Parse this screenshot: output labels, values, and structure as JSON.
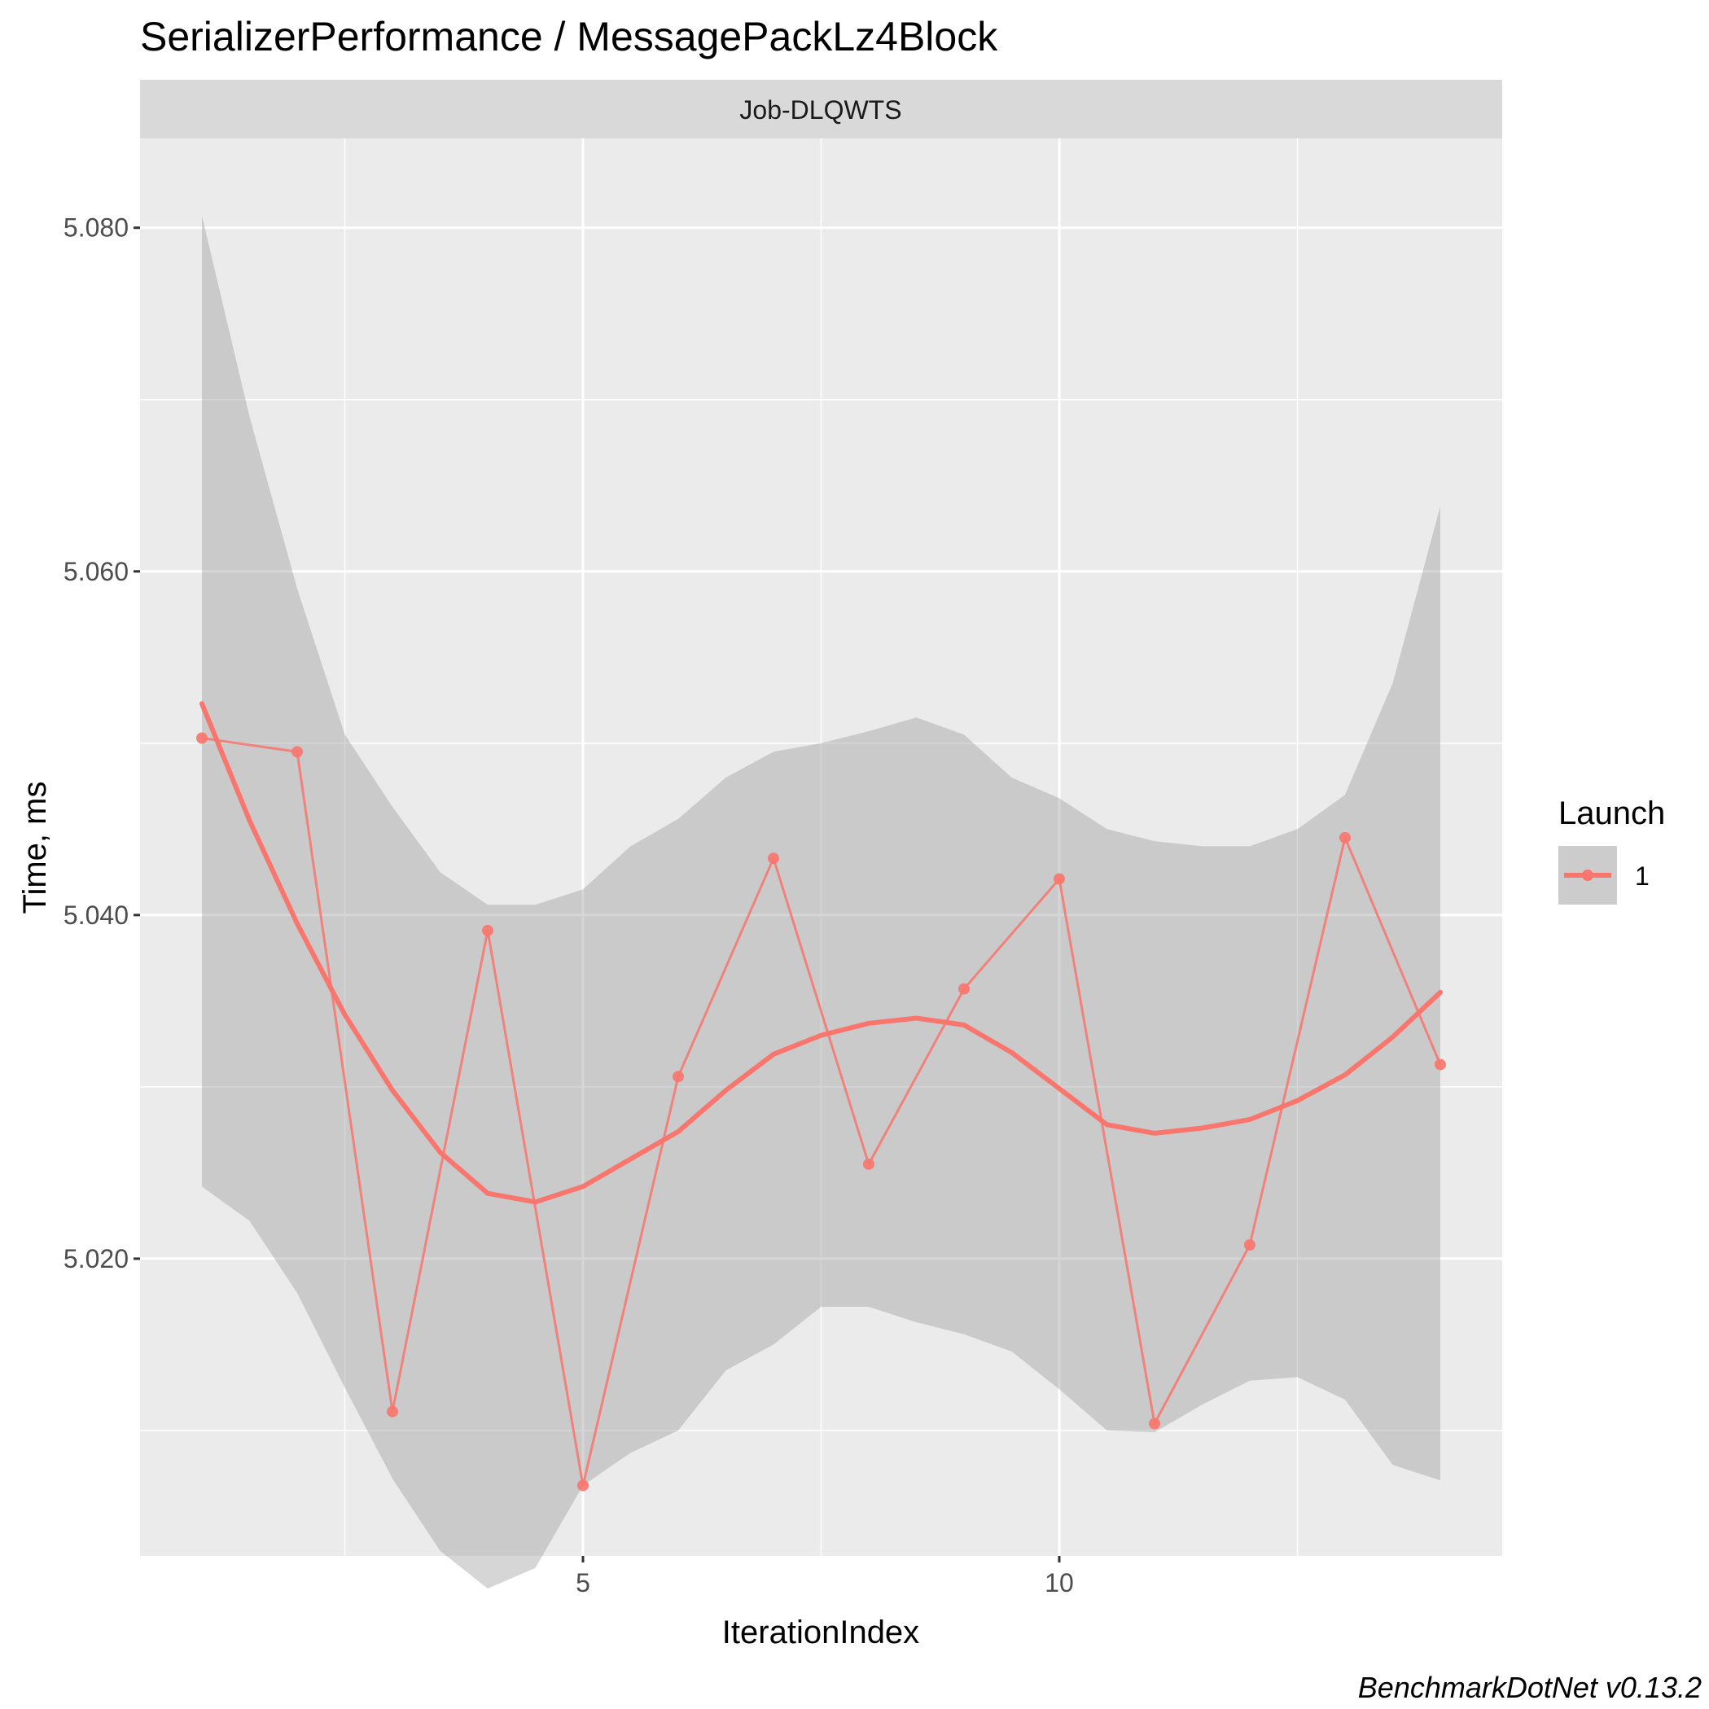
{
  "chart_data": {
    "type": "line",
    "title": "SerializerPerformance / MessagePackLz4Block",
    "facet_label": "Job-DLQWTS",
    "xlabel": "IterationIndex",
    "ylabel": "Time, ms",
    "caption": "BenchmarkDotNet v0.13.2",
    "x_ticks": [
      5,
      10
    ],
    "y_ticks": [
      5.02,
      5.04,
      5.06,
      5.08
    ],
    "y_tick_labels": [
      "5.020",
      "5.040",
      "5.060",
      "5.080"
    ],
    "x_tick_labels": [
      "5",
      "10"
    ],
    "xlim": [
      0.35,
      14.65
    ],
    "ylim": [
      5.0027,
      5.0852
    ],
    "x_minor_gridlines": [
      2.5,
      7.5,
      12.5
    ],
    "y_minor_gridlines": [
      5.01,
      5.03,
      5.05,
      5.07
    ],
    "grid": true,
    "legend": {
      "title": "Launch",
      "position": "right",
      "entries": [
        "1"
      ]
    },
    "series": [
      {
        "name": "1",
        "color": "#F8766D",
        "x": [
          1,
          2,
          3,
          4,
          5,
          6,
          7,
          8,
          9,
          10,
          11,
          12,
          13,
          14
        ],
        "values": [
          5.0503,
          5.0495,
          5.0111,
          5.0391,
          5.0068,
          5.0306,
          5.0433,
          5.0255,
          5.0357,
          5.0421,
          5.0104,
          5.0208,
          5.0445,
          5.0313
        ]
      }
    ],
    "smooth": {
      "color": "#F8766D",
      "x": [
        1,
        1.5,
        2,
        2.5,
        3,
        3.5,
        4,
        4.5,
        5,
        5.5,
        6,
        6.5,
        7,
        7.5,
        8,
        8.5,
        9,
        9.5,
        10,
        10.5,
        11,
        11.5,
        12,
        12.5,
        13,
        13.5,
        14
      ],
      "values": [
        5.0523,
        5.0455,
        5.0395,
        5.0342,
        5.0298,
        5.0262,
        5.0238,
        5.0233,
        5.0242,
        5.0258,
        5.0274,
        5.0298,
        5.0319,
        5.033,
        5.0337,
        5.034,
        5.0336,
        5.032,
        5.0299,
        5.0278,
        5.0273,
        5.0276,
        5.0281,
        5.0292,
        5.0307,
        5.0329,
        5.0355
      ],
      "ci_lower": [
        5.0242,
        5.0222,
        5.018,
        5.0125,
        5.0072,
        5.003,
        5.0008,
        5.002,
        5.0068,
        5.0087,
        5.01,
        5.0135,
        5.015,
        5.0172,
        5.0172,
        5.0163,
        5.0156,
        5.0146,
        5.0124,
        5.01,
        5.0099,
        5.0115,
        5.0129,
        5.0131,
        5.0118,
        5.008,
        5.0071
      ],
      "ci_upper": [
        5.0807,
        5.069,
        5.059,
        5.0505,
        5.0463,
        5.0425,
        5.0406,
        5.0406,
        5.0415,
        5.044,
        5.0456,
        5.048,
        5.0495,
        5.05,
        5.0507,
        5.0515,
        5.0505,
        5.048,
        5.0468,
        5.045,
        5.0443,
        5.044,
        5.044,
        5.045,
        5.047,
        5.0535,
        5.0638
      ]
    }
  }
}
